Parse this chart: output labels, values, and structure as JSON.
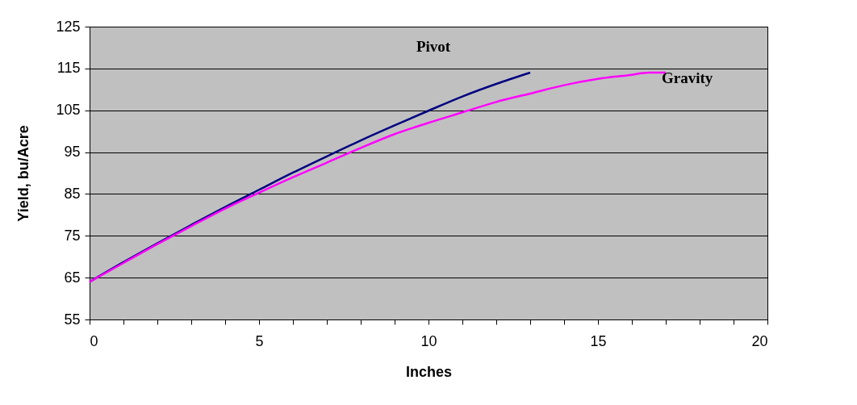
{
  "chart_data": {
    "type": "line",
    "xlabel": "Inches",
    "ylabel": "Yield, bu/Acre",
    "xlim": [
      0,
      20
    ],
    "ylim": [
      55,
      125
    ],
    "xticks": [
      0,
      {
        "value": 1,
        "label": null
      },
      {
        "value": 2,
        "label": null
      },
      {
        "value": 3,
        "label": null
      },
      {
        "value": 4,
        "label": null
      },
      5,
      {
        "value": 6,
        "label": null
      },
      {
        "value": 7,
        "label": null
      },
      {
        "value": 8,
        "label": null
      },
      {
        "value": 9,
        "label": null
      },
      10,
      {
        "value": 11,
        "label": null
      },
      {
        "value": 12,
        "label": null
      },
      {
        "value": 13,
        "label": null
      },
      {
        "value": 14,
        "label": null
      },
      15,
      {
        "value": 16,
        "label": null
      },
      {
        "value": 17,
        "label": null
      },
      {
        "value": 18,
        "label": null
      },
      {
        "value": 19,
        "label": null
      },
      20
    ],
    "yticks": [
      55,
      65,
      75,
      85,
      95,
      105,
      115,
      125
    ],
    "grid": "y",
    "marker": "none",
    "line_style": "solid",
    "series": [
      {
        "name": "Pivot",
        "color": "#000080",
        "x": [
          0,
          1,
          2,
          3,
          4,
          5,
          6,
          7,
          8,
          9,
          10,
          11,
          12,
          13
        ],
        "values": [
          64,
          68.7,
          73.2,
          77.6,
          81.9,
          86,
          90.1,
          94,
          97.8,
          101.4,
          104.9,
          108.3,
          111.3,
          114
        ]
      },
      {
        "name": "Gravity",
        "color": "#ff00ff",
        "x": [
          0,
          1,
          2,
          3,
          4,
          5,
          6,
          7,
          8,
          9,
          10,
          11,
          12,
          13,
          14,
          15,
          16,
          16.5,
          17
        ],
        "values": [
          64,
          68.5,
          73,
          77.3,
          81.5,
          85.3,
          89,
          92.5,
          96,
          99.3,
          102,
          104.5,
          107,
          109,
          111,
          112.5,
          113.5,
          114,
          114
        ]
      }
    ]
  }
}
